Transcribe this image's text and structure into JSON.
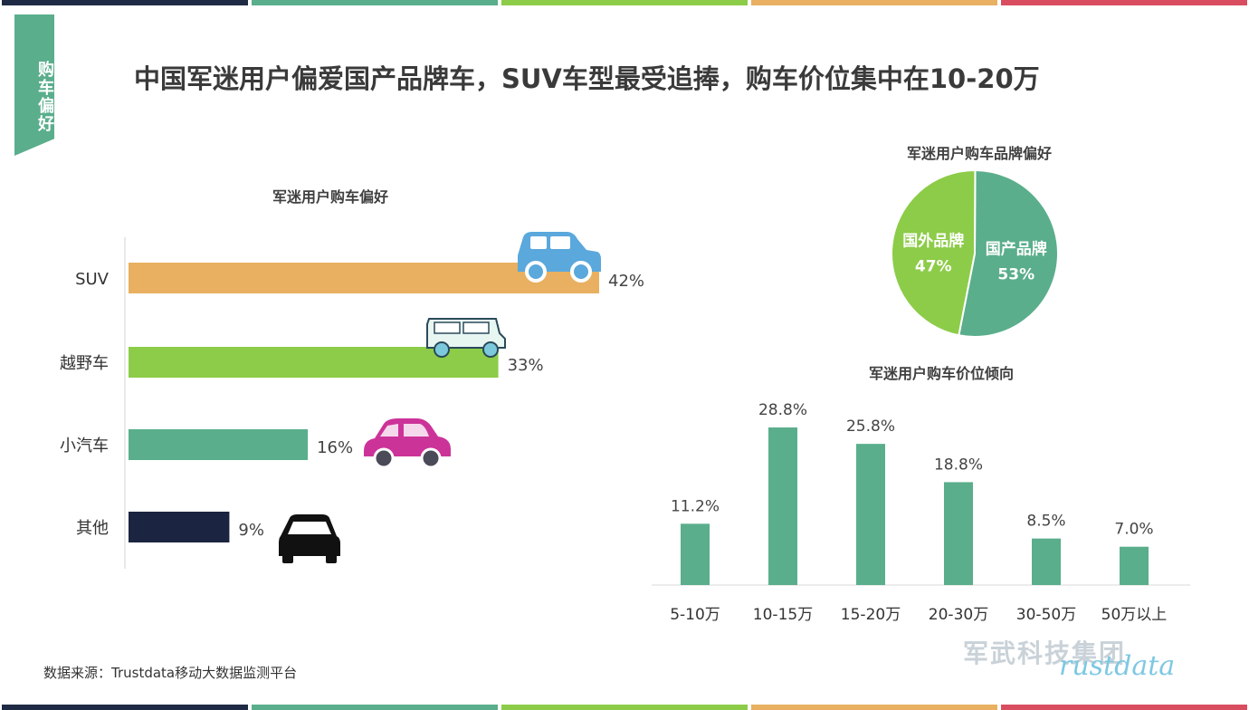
{
  "side_tag": "购车偏好",
  "title": "中国军迷用户偏爱国产品牌车，SUV车型最受追捧，购车价位集中在10-20万",
  "source": "数据来源：Trustdata移动大数据监测平台",
  "watermark": "军武科技集团",
  "watermark_logo": "Trustdata",
  "stripe_colors": [
    "#1f2a44",
    "#5aae8c",
    "#8ccc48",
    "#e8b060",
    "#d94d60"
  ],
  "chart_data": [
    {
      "type": "bar",
      "orientation": "horizontal",
      "title": "军迷用户购车偏好",
      "categories": [
        "SUV",
        "越野车",
        "小汽车",
        "其他"
      ],
      "values": [
        42,
        33,
        16,
        9
      ],
      "labels": [
        "42%",
        "33%",
        "16%",
        "9%"
      ],
      "colors": [
        "#e8b060",
        "#8ccc48",
        "#5aae8c",
        "#1b2440"
      ],
      "icons": [
        "suv-car-icon",
        "offroad-jeep-icon",
        "compact-car-icon",
        "sedan-car-icon"
      ]
    },
    {
      "type": "pie",
      "title": "军迷用户购车品牌偏好",
      "slices": [
        {
          "name": "国产品牌",
          "value": 53,
          "label": "53%",
          "color": "#5aae8c"
        },
        {
          "name": "国外品牌",
          "value": 47,
          "label": "47%",
          "color": "#8ccc48"
        }
      ]
    },
    {
      "type": "bar",
      "title": "军迷用户购车价位倾向",
      "categories": [
        "5-10万",
        "10-15万",
        "15-20万",
        "20-30万",
        "30-50万",
        "50万以上"
      ],
      "values": [
        11.2,
        28.8,
        25.8,
        18.8,
        8.5,
        7.0
      ],
      "labels": [
        "11.2%",
        "28.8%",
        "25.8%",
        "18.8%",
        "8.5%",
        "7.0%"
      ],
      "color": "#5aae8c"
    }
  ]
}
